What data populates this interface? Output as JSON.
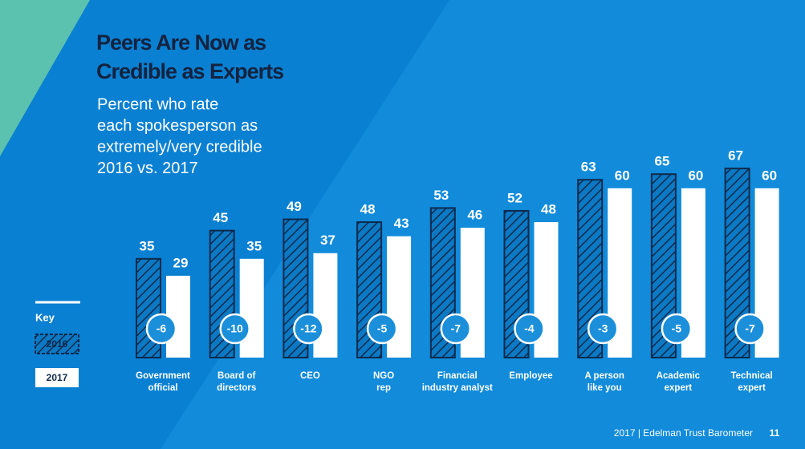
{
  "chart_data": {
    "type": "bar",
    "title": [
      "Peers Are Now as",
      "Credible as Experts"
    ],
    "subtitle": [
      "Percent who rate",
      "each spokesperson as",
      "extremely/very credible",
      "2016 vs. 2017"
    ],
    "categories": [
      [
        "Government",
        "official"
      ],
      [
        "Board of",
        "directors"
      ],
      [
        "CEO"
      ],
      [
        "NGO",
        "rep"
      ],
      [
        "Financial",
        "industry analyst"
      ],
      [
        "Employee"
      ],
      [
        "A person",
        "like you"
      ],
      [
        "Academic",
        "expert"
      ],
      [
        "Technical",
        "expert"
      ]
    ],
    "series": [
      {
        "name": "2016",
        "color": "#0d2a4c",
        "values": [
          35,
          45,
          49,
          48,
          53,
          52,
          63,
          65,
          67
        ]
      },
      {
        "name": "2017",
        "color": "#ffffff",
        "values": [
          29,
          35,
          37,
          43,
          46,
          48,
          60,
          60,
          60
        ]
      }
    ],
    "differences": [
      -6,
      -10,
      -12,
      -5,
      -7,
      -4,
      -3,
      -5,
      -7
    ],
    "legend_title": "Key",
    "footer": "2017 | Edelman Trust Barometer",
    "page_number": 11
  }
}
